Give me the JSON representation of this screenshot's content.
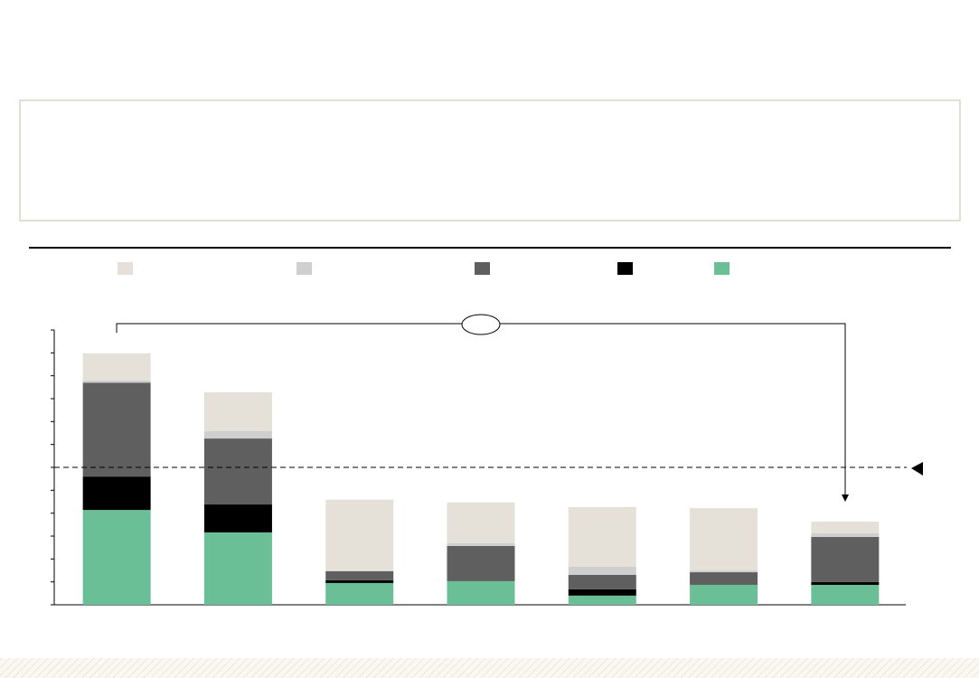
{
  "chart_data": {
    "type": "stacked_bar",
    "categories": [
      null,
      null,
      null,
      null,
      null,
      null,
      null
    ],
    "series": [
      {
        "color": "#6bbf96",
        "values": [
          4.14,
          3.16,
          0.95,
          1.03,
          0.4,
          0.87,
          0.87
        ]
      },
      {
        "color": "#000000",
        "values": [
          1.46,
          1.22,
          0.12,
          0,
          0.28,
          0,
          0.12
        ]
      },
      {
        "color": "#5f5f5f",
        "values": [
          4.1,
          2.88,
          0.4,
          1.54,
          0.63,
          0.55,
          1.97
        ]
      },
      {
        "color": "#cfcfcf",
        "values": [
          0.1,
          0.32,
          0,
          0.12,
          0.36,
          0.08,
          0.16
        ]
      },
      {
        "color": "#e5e1d8",
        "values": [
          1.18,
          1.7,
          3.12,
          1.78,
          2.6,
          2.72,
          0.51
        ]
      }
    ],
    "reference_line": 6,
    "ylim": [
      0,
      12
    ],
    "yticks": [
      0,
      1,
      2,
      3,
      4,
      5,
      6,
      7,
      8,
      9,
      10,
      11,
      12
    ]
  }
}
